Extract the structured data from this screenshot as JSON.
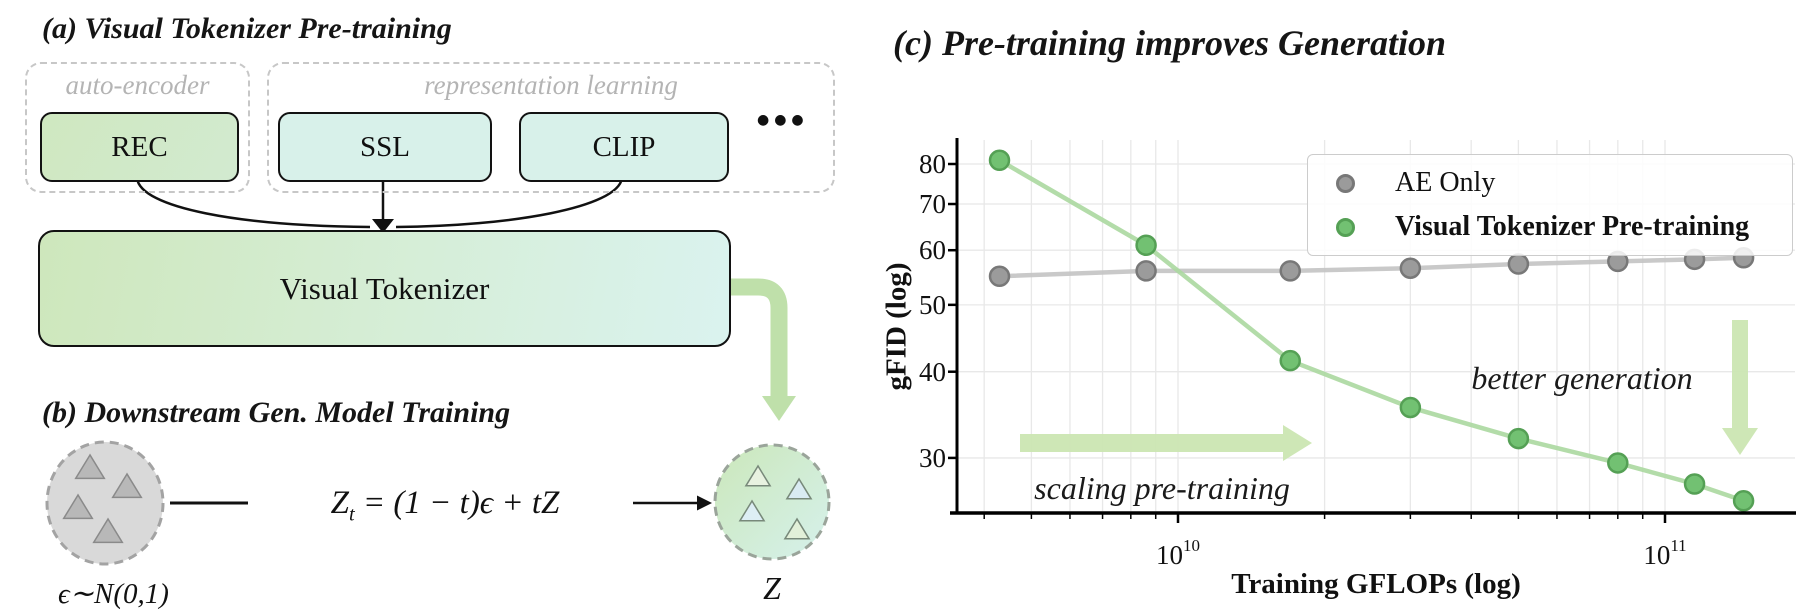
{
  "panel_a": {
    "title": "(a) Visual Tokenizer Pre-training",
    "groups": [
      {
        "label": "auto-encoder"
      },
      {
        "label": "representation learning",
        "more": "●●●"
      }
    ],
    "boxes": {
      "rec": "REC",
      "ssl": "SSL",
      "clip": "CLIP"
    },
    "tokenizer_label": "Visual Tokenizer"
  },
  "panel_b": {
    "title": "(b) Downstream Gen. Model Training",
    "noise_label": "ϵ∼N(0,1)",
    "equation": {
      "var": "Z",
      "sub": "t",
      "rest": " = (1 − t)ϵ + tZ"
    },
    "latent_label": "Z"
  },
  "panel_c": {
    "title": "(c) Pre-training improves Generation",
    "xlabel": "Training GFLOPs (log)",
    "ylabel": "gFID (log)",
    "y_ticks": [
      30,
      40,
      50,
      60,
      70,
      80
    ],
    "x_ticks": [
      {
        "base": "10",
        "exp": "10"
      },
      {
        "base": "10",
        "exp": "11"
      }
    ],
    "legend": [
      {
        "label": "AE Only",
        "color": "#9b9b9b",
        "edge": "#787878",
        "bold": false
      },
      {
        "label": "Visual Tokenizer Pre-training",
        "color": "#72c172",
        "edge": "#55a055",
        "bold": true
      }
    ],
    "annotations": {
      "x_arrow_label": "scaling pre-training",
      "y_arrow_label": "better generation"
    }
  },
  "chart_data": {
    "type": "line",
    "title": "(c) Pre-training improves Generation",
    "xlabel": "Training GFLOPs (log)",
    "ylabel": "gFID (log)",
    "x_scale": "log",
    "y_scale": "log",
    "xlim": [
      3500000000.0,
      190000000000.0
    ],
    "ylim": [
      25,
      87
    ],
    "grid": true,
    "legend_position": "upper right",
    "x": [
      4300000000.0,
      8600000000.0,
      17000000000.0,
      30000000000.0,
      50000000000.0,
      80000000000.0,
      115000000000.0,
      145000000000.0
    ],
    "series": [
      {
        "name": "AE Only",
        "color": "#9b9b9b",
        "edge": "#787878",
        "line_color": "#c3c3c3",
        "values": [
          55,
          56,
          56,
          56.5,
          57.3,
          57.8,
          58.2,
          58.5
        ]
      },
      {
        "name": "Visual Tokenizer Pre-training",
        "color": "#72c172",
        "edge": "#55a055",
        "line_color": "#abd8a0",
        "values": [
          81,
          61,
          41.5,
          35.5,
          32,
          29.5,
          27.5,
          26
        ]
      }
    ],
    "annotations": [
      "scaling pre-training",
      "better generation"
    ]
  }
}
